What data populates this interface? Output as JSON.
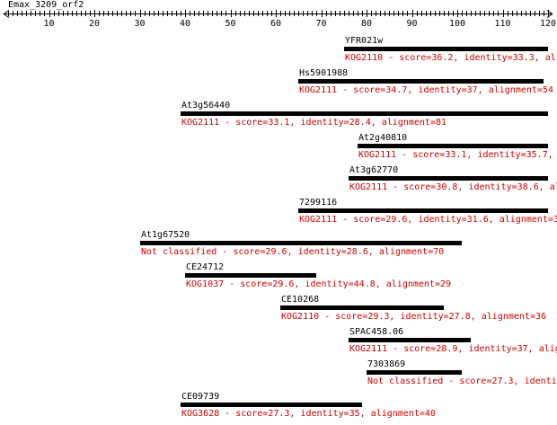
{
  "query": {
    "name": "Emax_3209_orf2",
    "length": 120,
    "ticks": [
      10,
      20,
      30,
      40,
      50,
      60,
      70,
      80,
      90,
      100,
      110,
      120
    ]
  },
  "hits": [
    {
      "name": "YFR021w",
      "kog": "KOG2110",
      "score": "36.2",
      "identity": "33.3",
      "alignment": null,
      "start": 75,
      "end": 120,
      "info": "KOG2110 - score=36.2, identity=33.3, ali"
    },
    {
      "name": "Hs5901988",
      "kog": "KOG2111",
      "score": "34.7",
      "identity": "37",
      "alignment": "54",
      "start": 65,
      "end": 119,
      "info": "KOG2111 - score=34.7, identity=37, alignment=54"
    },
    {
      "name": "At3g56440",
      "kog": "KOG2111",
      "score": "33.1",
      "identity": "28.4",
      "alignment": "81",
      "start": 39,
      "end": 120,
      "info": "KOG2111 - score=33.1, identity=28.4, alignment=81"
    },
    {
      "name": "At2g40810",
      "kog": "KOG2111",
      "score": "33.1",
      "identity": "35.7",
      "alignment": null,
      "start": 78,
      "end": 120,
      "info": "KOG2111 - score=33.1, identity=35.7, ali"
    },
    {
      "name": "At3g62770",
      "kog": "KOG2111",
      "score": "30.8",
      "identity": "38.6",
      "alignment": null,
      "start": 76,
      "end": 120,
      "info": "KOG2111 - score=30.8, identity=38.6, alig"
    },
    {
      "name": "7299116",
      "kog": "KOG2111",
      "score": "29.6",
      "identity": "31.6",
      "alignment": null,
      "start": 65,
      "end": 120,
      "info": "KOG2111 - score=29.6, identity=31.6, alignment=3"
    },
    {
      "name": "At1g67520",
      "kog": "Not classified",
      "score": "29.6",
      "identity": "28.6",
      "alignment": "70",
      "start": 30,
      "end": 101,
      "info": "Not classified - score=29.6, identity=28.6, alignment=70"
    },
    {
      "name": "CE24712",
      "kog": "KOG1037",
      "score": "29.6",
      "identity": "44.8",
      "alignment": "29",
      "start": 40,
      "end": 69,
      "info": "KOG1037 - score=29.6, identity=44.8, alignment=29"
    },
    {
      "name": "CE10268",
      "kog": "KOG2110",
      "score": "29.3",
      "identity": "27.8",
      "alignment": "36",
      "start": 61,
      "end": 97,
      "info": "KOG2110 - score=29.3, identity=27.8, alignment=36"
    },
    {
      "name": "SPAC458.06",
      "kog": "KOG2111",
      "score": "28.9",
      "identity": "37",
      "alignment": null,
      "start": 76,
      "end": 103,
      "info": "KOG2111 - score=28.9, identity=37, alig"
    },
    {
      "name": "7303869",
      "kog": "Not classified",
      "score": "27.3",
      "identity": null,
      "alignment": null,
      "start": 80,
      "end": 101,
      "info": "Not classified - score=27.3, identi"
    },
    {
      "name": "CE09739",
      "kog": "KOG3628",
      "score": "27.3",
      "identity": "35",
      "alignment": "40",
      "start": 39,
      "end": 79,
      "info": "KOG3628 - score=27.3, identity=35, alignment=40"
    }
  ]
}
